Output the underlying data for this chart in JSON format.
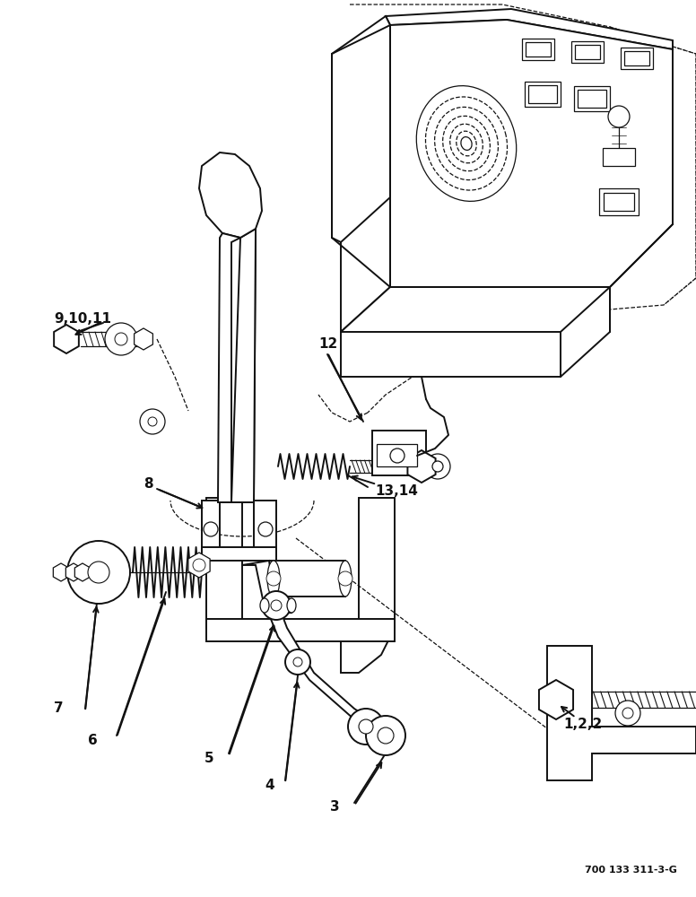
{
  "bg_color": "#ffffff",
  "line_color": "#111111",
  "figsize": [
    7.76,
    10.0
  ],
  "dpi": 100,
  "watermark": "700 133 311-3-G",
  "lw_main": 1.4,
  "lw_thin": 0.9,
  "lw_thick": 2.0,
  "label_fontsize": 11,
  "label_fontsize_sm": 9
}
